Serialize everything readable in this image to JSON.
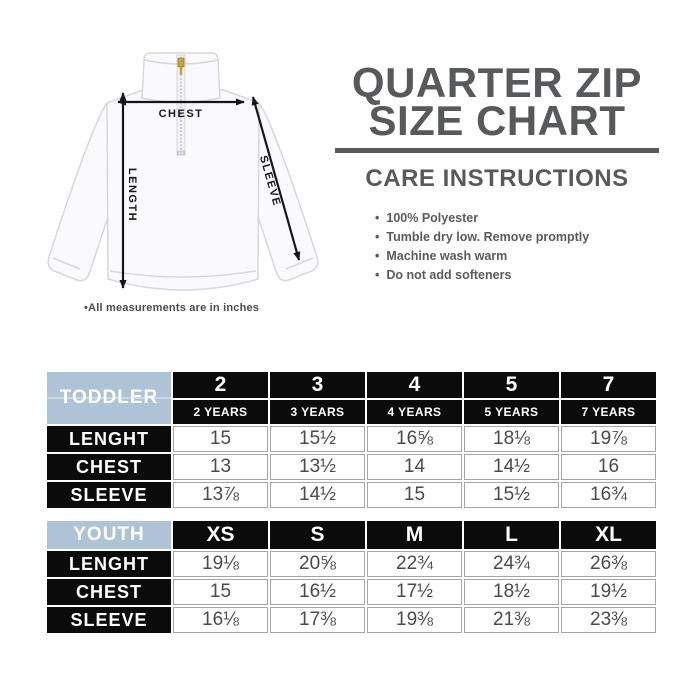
{
  "title": {
    "line1": "QUARTER ZIP",
    "line2": "SIZE CHART"
  },
  "care": {
    "heading": "CARE INSTRUCTIONS",
    "items": [
      "100% Polyester",
      "Tumble dry low. Remove promptly",
      "Machine wash warm",
      "Do not add softeners"
    ]
  },
  "diagram": {
    "chest_label": "CHEST",
    "length_label": "LENGTH",
    "sleeve_label": "SLEEVE",
    "note": "•All measurements are in inches"
  },
  "tables": [
    {
      "name": "TODDLER",
      "sizes": [
        "2",
        "3",
        "4",
        "5",
        "7"
      ],
      "sub_sizes": [
        "2 YEARS",
        "3 YEARS",
        "4 YEARS",
        "5 YEARS",
        "7 YEARS"
      ],
      "rows": [
        {
          "label": "LENGHT",
          "values": [
            "15",
            "15½",
            "16⅝",
            "18⅛",
            "19⅞"
          ]
        },
        {
          "label": "CHEST",
          "values": [
            "13",
            "13½",
            "14",
            "14½",
            "16"
          ]
        },
        {
          "label": "SLEEVE",
          "values": [
            "13⅞",
            "14½",
            "15",
            "15½",
            "16¾"
          ]
        }
      ]
    },
    {
      "name": "YOUTH",
      "sizes": [
        "XS",
        "S",
        "M",
        "L",
        "XL"
      ],
      "rows": [
        {
          "label": "LENGHT",
          "values": [
            "19⅛",
            "20⅝",
            "22¾",
            "24¾",
            "26⅜"
          ]
        },
        {
          "label": "CHEST",
          "values": [
            "15",
            "16½",
            "17½",
            "18½",
            "19½"
          ]
        },
        {
          "label": "SLEEVE",
          "values": [
            "16⅛",
            "17⅜",
            "19⅜",
            "21⅜",
            "23⅜"
          ]
        }
      ]
    }
  ],
  "colors": {
    "accent_blue": "#AEC3D6",
    "heading_gray": "#58595B",
    "table_black": "#0B0B0B",
    "value_text": "#4B4B4D",
    "arrow_black": "#161616"
  }
}
